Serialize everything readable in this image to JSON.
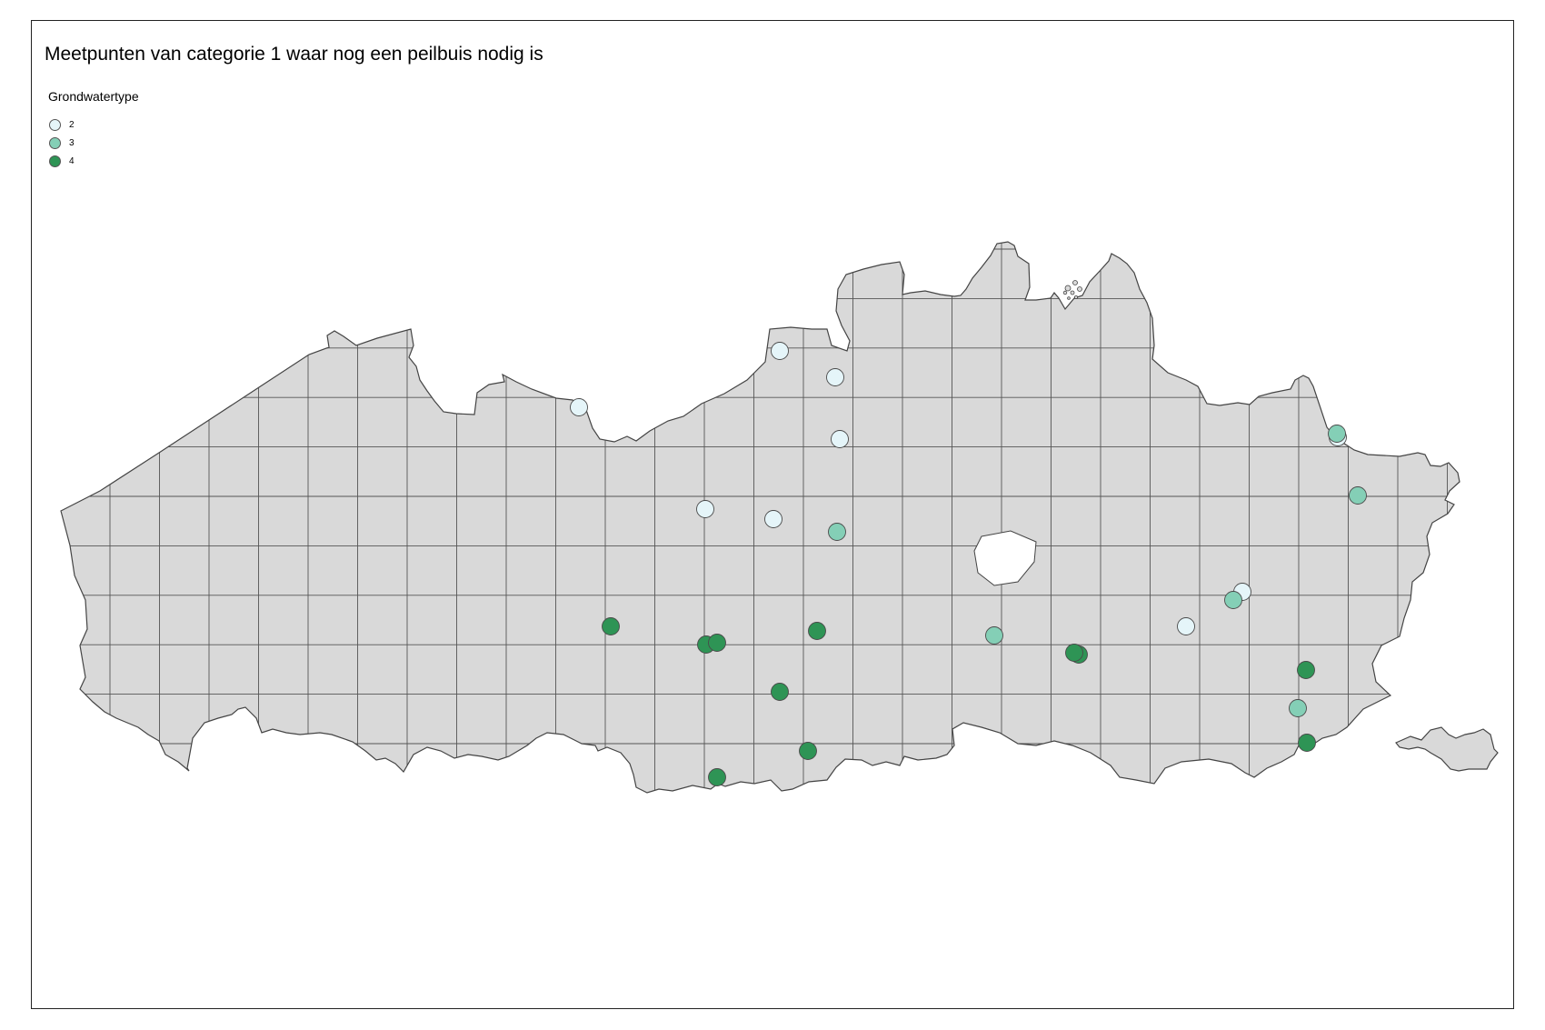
{
  "map": {
    "title": "Meetpunten van categorie 1 waar nog een peilbuis nodig is",
    "legend": {
      "title": "Grondwatertype",
      "entries": [
        {
          "label": "2",
          "color": "#e5f5f9"
        },
        {
          "label": "3",
          "color": "#84cfb6"
        },
        {
          "label": "4",
          "color": "#2e9455"
        }
      ]
    },
    "colors": {
      "land": "#d9d9d9",
      "border": "#444444",
      "grid": "#555555",
      "frame": "#222222"
    }
  },
  "points": [
    {
      "type": 2,
      "label": "2"
    },
    {
      "type": 2,
      "label": "2"
    },
    {
      "type": 2,
      "label": "2"
    },
    {
      "type": 2,
      "label": "2"
    },
    {
      "type": 2,
      "label": "2"
    },
    {
      "type": 2,
      "label": "2"
    },
    {
      "type": 2,
      "label": "2"
    },
    {
      "type": 2,
      "label": "2"
    },
    {
      "type": 2,
      "label": "2"
    },
    {
      "type": 3,
      "label": "3"
    },
    {
      "type": 3,
      "label": "3"
    },
    {
      "type": 3,
      "label": "3"
    },
    {
      "type": 3,
      "label": "3"
    },
    {
      "type": 3,
      "label": "3"
    },
    {
      "type": 3,
      "label": "3"
    },
    {
      "type": 4,
      "label": "4"
    },
    {
      "type": 4,
      "label": "4"
    },
    {
      "type": 4,
      "label": "4"
    },
    {
      "type": 4,
      "label": "4"
    },
    {
      "type": 4,
      "label": "4"
    },
    {
      "type": 4,
      "label": "4"
    },
    {
      "type": 4,
      "label": "4"
    },
    {
      "type": 4,
      "label": "4"
    },
    {
      "type": 4,
      "label": "4"
    },
    {
      "type": 4,
      "label": "4"
    },
    {
      "type": 4,
      "label": "4"
    }
  ]
}
